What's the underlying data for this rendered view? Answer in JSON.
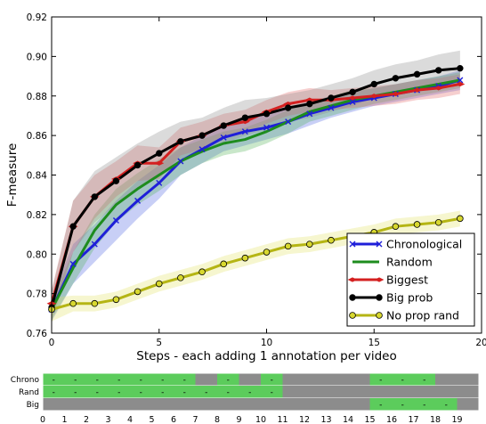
{
  "chart_data": [
    {
      "type": "line",
      "xlabel": "Steps - each adding 1 annotation per video",
      "ylabel": "F-measure",
      "xlim": [
        0,
        20
      ],
      "ylim": [
        0.76,
        0.92
      ],
      "xticks": [
        0,
        5,
        10,
        15,
        20
      ],
      "yticks": [
        0.76,
        0.78,
        0.8,
        0.82,
        0.84,
        0.86,
        0.88,
        0.9,
        0.92
      ],
      "ytick_labels": [
        "0.76",
        "0.78",
        "0.80",
        "0.82",
        "0.84",
        "0.86",
        "0.88",
        "0.90",
        "0.92"
      ],
      "grid": false,
      "legend_position": "bottom-right",
      "x": [
        0,
        1,
        2,
        3,
        4,
        5,
        6,
        7,
        8,
        9,
        10,
        11,
        12,
        13,
        14,
        15,
        16,
        17,
        18,
        19
      ],
      "series": [
        {
          "name": "Chronological",
          "color": "#1f1fd9",
          "band_color": "#4a60e0",
          "marker": "x",
          "values": [
            0.772,
            0.795,
            0.805,
            0.817,
            0.827,
            0.836,
            0.847,
            0.853,
            0.859,
            0.862,
            0.864,
            0.867,
            0.871,
            0.874,
            0.877,
            0.879,
            0.881,
            0.883,
            0.885,
            0.888
          ],
          "lower": [
            0.766,
            0.785,
            0.796,
            0.807,
            0.818,
            0.828,
            0.84,
            0.846,
            0.852,
            0.855,
            0.858,
            0.861,
            0.865,
            0.869,
            0.872,
            0.875,
            0.877,
            0.879,
            0.881,
            0.883
          ],
          "upper": [
            0.778,
            0.805,
            0.815,
            0.827,
            0.837,
            0.845,
            0.854,
            0.86,
            0.866,
            0.869,
            0.871,
            0.874,
            0.877,
            0.88,
            0.882,
            0.884,
            0.886,
            0.888,
            0.89,
            0.893
          ]
        },
        {
          "name": "Random",
          "color": "#1e8c1e",
          "band_color": "#4caf50",
          "marker": "none",
          "values": [
            0.772,
            0.793,
            0.812,
            0.825,
            0.833,
            0.84,
            0.847,
            0.852,
            0.856,
            0.858,
            0.862,
            0.867,
            0.872,
            0.875,
            0.878,
            0.88,
            0.882,
            0.884,
            0.886,
            0.888
          ],
          "lower": [
            0.767,
            0.785,
            0.803,
            0.816,
            0.825,
            0.832,
            0.84,
            0.846,
            0.85,
            0.852,
            0.856,
            0.861,
            0.867,
            0.87,
            0.873,
            0.876,
            0.878,
            0.88,
            0.882,
            0.884
          ],
          "upper": [
            0.777,
            0.801,
            0.82,
            0.833,
            0.841,
            0.848,
            0.854,
            0.858,
            0.862,
            0.864,
            0.868,
            0.873,
            0.877,
            0.88,
            0.883,
            0.884,
            0.886,
            0.888,
            0.89,
            0.892
          ]
        },
        {
          "name": "Biggest",
          "color": "#d42020",
          "band_color": "#e06060",
          "marker": "diamond",
          "values": [
            0.775,
            0.814,
            0.829,
            0.838,
            0.846,
            0.846,
            0.857,
            0.86,
            0.865,
            0.867,
            0.872,
            0.876,
            0.878,
            0.878,
            0.879,
            0.88,
            0.881,
            0.883,
            0.884,
            0.886
          ],
          "lower": [
            0.768,
            0.801,
            0.818,
            0.829,
            0.837,
            0.838,
            0.85,
            0.853,
            0.859,
            0.861,
            0.866,
            0.87,
            0.872,
            0.873,
            0.874,
            0.875,
            0.876,
            0.878,
            0.879,
            0.881
          ],
          "upper": [
            0.782,
            0.827,
            0.84,
            0.847,
            0.855,
            0.854,
            0.864,
            0.867,
            0.871,
            0.873,
            0.878,
            0.882,
            0.884,
            0.883,
            0.884,
            0.885,
            0.886,
            0.888,
            0.889,
            0.891
          ]
        },
        {
          "name": "Big prob",
          "color": "#000000",
          "band_color": "#888888",
          "marker": "circle",
          "values": [
            0.773,
            0.814,
            0.829,
            0.837,
            0.845,
            0.851,
            0.857,
            0.86,
            0.865,
            0.869,
            0.871,
            0.874,
            0.876,
            0.879,
            0.882,
            0.886,
            0.889,
            0.891,
            0.893,
            0.894
          ],
          "lower": [
            0.765,
            0.801,
            0.816,
            0.825,
            0.834,
            0.84,
            0.847,
            0.851,
            0.856,
            0.86,
            0.863,
            0.867,
            0.869,
            0.872,
            0.875,
            0.879,
            0.882,
            0.884,
            0.885,
            0.885
          ],
          "upper": [
            0.781,
            0.827,
            0.842,
            0.849,
            0.856,
            0.862,
            0.867,
            0.869,
            0.874,
            0.878,
            0.879,
            0.881,
            0.883,
            0.886,
            0.889,
            0.893,
            0.896,
            0.898,
            0.901,
            0.903
          ]
        },
        {
          "name": "No prop rand",
          "color": "#b5b514",
          "band_color": "#e0e060",
          "marker": "circle-filled",
          "values": [
            0.772,
            0.775,
            0.775,
            0.777,
            0.781,
            0.785,
            0.788,
            0.791,
            0.795,
            0.798,
            0.801,
            0.804,
            0.805,
            0.807,
            0.809,
            0.811,
            0.814,
            0.815,
            0.816,
            0.818
          ],
          "lower": [
            0.766,
            0.771,
            0.771,
            0.773,
            0.777,
            0.781,
            0.784,
            0.787,
            0.791,
            0.794,
            0.797,
            0.8,
            0.801,
            0.803,
            0.805,
            0.807,
            0.81,
            0.811,
            0.812,
            0.814
          ],
          "upper": [
            0.778,
            0.779,
            0.779,
            0.781,
            0.785,
            0.789,
            0.792,
            0.795,
            0.799,
            0.802,
            0.805,
            0.808,
            0.809,
            0.811,
            0.813,
            0.815,
            0.818,
            0.819,
            0.82,
            0.822
          ]
        }
      ]
    },
    {
      "type": "heatmap",
      "x_tick_labels": [
        "0",
        "1",
        "2",
        "3",
        "4",
        "5",
        "6",
        "7",
        "8",
        "9",
        "10",
        "11",
        "12",
        "13",
        "14",
        "15",
        "16",
        "17",
        "18",
        "19"
      ],
      "on_color": "#5ccc5c",
      "off_color": "#8c8c8c",
      "rows": [
        {
          "label": "Chrono",
          "cells": [
            1,
            1,
            1,
            1,
            1,
            1,
            1,
            0,
            1,
            0,
            1,
            0,
            0,
            0,
            0,
            1,
            1,
            1,
            0,
            0
          ]
        },
        {
          "label": "Rand",
          "cells": [
            1,
            1,
            1,
            1,
            1,
            1,
            1,
            1,
            1,
            1,
            1,
            0,
            0,
            0,
            0,
            0,
            0,
            0,
            0,
            0
          ]
        },
        {
          "label": "Big",
          "cells": [
            0,
            0,
            0,
            0,
            0,
            0,
            0,
            0,
            0,
            0,
            0,
            0,
            0,
            0,
            0,
            1,
            1,
            1,
            1,
            0
          ]
        }
      ],
      "cell_mark": "-"
    }
  ]
}
